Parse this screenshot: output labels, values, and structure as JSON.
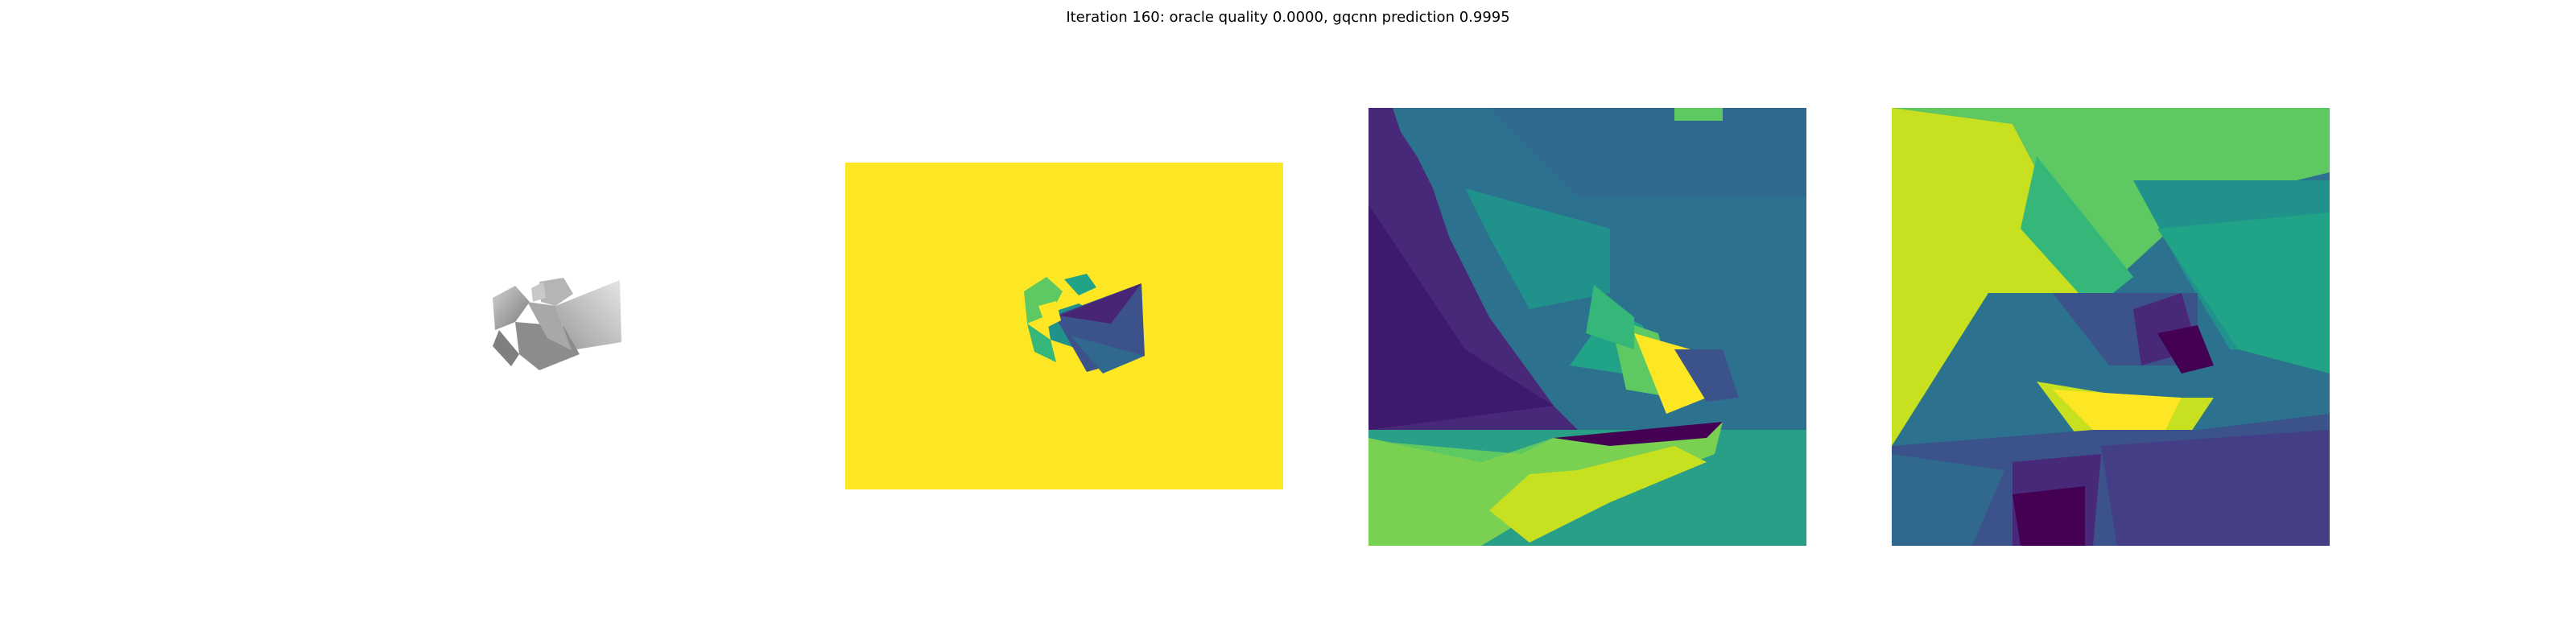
{
  "figure": {
    "suptitle": "Iteration 160: oracle quality 0.0000, gqcnn prediction 0.9995"
  },
  "panels": [
    {
      "name": "rgb-render",
      "content": "grayscale render of grasped object"
    },
    {
      "name": "depth-image",
      "colormap": "viridis"
    },
    {
      "name": "depth-crop-1",
      "colormap": "viridis"
    },
    {
      "name": "depth-crop-2",
      "colormap": "viridis"
    }
  ],
  "colors": {
    "viridis_dark": "#440154",
    "viridis_blue": "#3b528b",
    "viridis_teal": "#21918c",
    "viridis_green": "#5ec962",
    "viridis_yellow": "#fde725"
  }
}
